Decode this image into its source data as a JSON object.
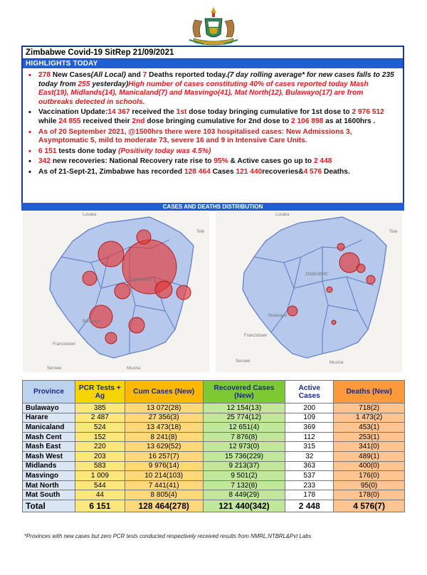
{
  "header": {
    "title": "Zimbabwe Covid-19 SitRep 21/09/2021"
  },
  "highlights": {
    "label": "HIGHLIGHTS TODAY",
    "item1": {
      "new_cases": "278",
      "t1": " New Cases",
      "t2": "(All Local)",
      "t3": " and ",
      "deaths": "7",
      "t4": " Deaths reported today.",
      "t5": "(7 day rolling average* for new cases falls to 235 today from ",
      "prev": "255",
      "t6": " yesterday)",
      "t7": "High number of cases constituting 40% of cases reported today Mash East(19), Midlands(14), Manicaland(7) and Masvingo(41), Mat North(12), Bulawayo(17) are from outbreaks detected in schools."
    },
    "item2": {
      "t1": "Vaccination Update:",
      "dose1_today": "14 367",
      "t2": " received the ",
      "first": "1st",
      "t3": " dose today bringing cumulative for 1st dose to ",
      "dose1_cum": "2 976 512",
      "t4": " while ",
      "dose2_today": "24 855",
      "t5": " received their ",
      "second": "2nd",
      "t6": " dose bringing cumulative for 2nd dose to ",
      "dose2_cum": "2 106 898",
      "t7": " as at 1600hrs ."
    },
    "item3": "As of 20 September 2021, @1500hrs there were 103 hospitalised cases: New Admissions 3, Asymptomatic 5, mild to moderate 73, severe 16 and 9 in Intensive Care Units.",
    "item4": {
      "tests": "6 151",
      "t1": " tests done today ",
      "t2": "(Positivity today was ",
      "pos": "4.5%",
      "t3": ")"
    },
    "item5": {
      "recov": "342",
      "t1": " new recoveries: National Recovery rate rise to ",
      "rate": "95%",
      "t2": " & Active cases go up to ",
      "active": "2 448"
    },
    "item6": {
      "t1": "As of 21-Sept-21, Zimbabwe has recorded ",
      "cases": "128 464",
      "t2": " Cases ",
      "recovered": "121 440",
      "t3": "recoveries&",
      "deaths": "4 576",
      "t4": " Deaths."
    }
  },
  "maps": {
    "section_label": "CASES AND DEATHS DISTRIBUTION",
    "left_labels": {
      "lusaka": "Lusaka",
      "tete": "Tete",
      "zimbabwe": "ZIMBABWE",
      "bulawayo": "Bulawayo",
      "francistown": "Francistown",
      "serowe": "Serowe",
      "musina": "Musina"
    },
    "right_labels": {
      "lusaka": "Lusaka",
      "tete": "Tete",
      "zimbabwe": "ZIMBABWE",
      "bulawayo": "Bulawayo",
      "francistown": "Francistown",
      "serowe": "Serowe",
      "musina": "Musina"
    }
  },
  "table": {
    "headers": {
      "province": "Province",
      "pcr": "PCR Tests + Ag",
      "cum": "Cum Cases (New)",
      "rec": "Recovered Cases (New)",
      "active": "Active Cases",
      "deaths": "Deaths (New)"
    },
    "rows": [
      {
        "province": "Bulawayo",
        "pcr": "385",
        "cum": "13 072(28)",
        "rec": "12 154(13)",
        "active": "200",
        "deaths": "718(2)"
      },
      {
        "province": "Harare",
        "pcr": "2 487",
        "cum": "27 356(3)",
        "rec": "25 774(12)",
        "active": "109",
        "deaths": "1 473(2)"
      },
      {
        "province": "Manicaland",
        "pcr": "524",
        "cum": "13 473(18)",
        "rec": "12 651(4)",
        "active": "369",
        "deaths": "453(1)"
      },
      {
        "province": "Mash Cent",
        "pcr": "152",
        "cum": "8 241(8)",
        "rec": "7 876(8)",
        "active": "112",
        "deaths": "253(1)"
      },
      {
        "province": "Mash East",
        "pcr": "220",
        "cum": "13 629(52)",
        "rec": "12 973(0)",
        "active": "315",
        "deaths": "341(0)"
      },
      {
        "province": "Mash West",
        "pcr": "203",
        "cum": "16 257(7)",
        "rec": "15 736(229)",
        "active": "32",
        "deaths": "489(1)"
      },
      {
        "province": "Midlands",
        "pcr": "583",
        "cum": "9 976(14)",
        "rec": "9 213(37)",
        "active": "363",
        "deaths": "400(0)"
      },
      {
        "province": "Masvingo",
        "pcr": "1 009",
        "cum": "10 214(103)",
        "rec": "9 501(2)",
        "active": "537",
        "deaths": "176(0)"
      },
      {
        "province": "Mat North",
        "pcr": "544",
        "cum": "7 441(41)",
        "rec": "7 132(8)",
        "active": "233",
        "deaths": "95(0)"
      },
      {
        "province": "Mat South",
        "pcr": "44",
        "cum": "8 805(4)",
        "rec": "8 449(29)",
        "active": "178",
        "deaths": "178(0)"
      }
    ],
    "total": {
      "province": "Total",
      "pcr": "6 151",
      "cum": "128 464(278)",
      "rec": "121 440(342)",
      "active": "2 448",
      "deaths": "4 576(7)"
    }
  },
  "footnote": "*Provinces  with new cases but zero  PCR tests conducted respectively received results from NMRL,NTBRL&Pvt Labs",
  "colors": {
    "accent_blue": "#1f5fd3",
    "highlight_red": "#e0191f",
    "pcr_yellow": "#f5d400",
    "recovered_green": "#7cc934",
    "deaths_orange": "#ff9a3c"
  }
}
